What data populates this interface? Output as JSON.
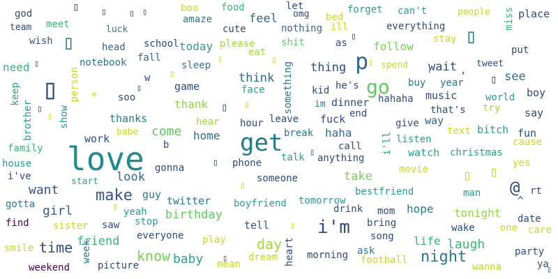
{
  "palette": {
    "dark_purple": "#440154",
    "indigo": "#31688e",
    "navy": "#2f4a7f",
    "teal": "#1f8c8c",
    "green": "#35b779",
    "lime": "#8fd744",
    "yellow": "#c9d91f"
  },
  "words": [
    {
      "text": "love",
      "color": "#1f8c8c"
    },
    {
      "text": "get",
      "color": "#1f7a8c"
    },
    {
      "text": "i'm",
      "color": "#2f4a7f"
    },
    {
      "text": "go",
      "color": "#5ec962"
    },
    {
      "text": "p",
      "color": "#31688e"
    },
    {
      "text": "night",
      "color": "#2a788e"
    },
    {
      "text": "make",
      "color": "#3b528b"
    },
    {
      "text": "know",
      "color": "#7ad151"
    },
    {
      "text": "day",
      "color": "#a0da39"
    },
    {
      "text": "laugh",
      "color": "#35b779"
    },
    {
      "text": "time",
      "color": "#2f4a7f"
    },
    {
      "text": "baby",
      "color": "#2a9d8f"
    },
    {
      "text": "thing",
      "color": "#2f4a7f"
    },
    {
      "text": "come",
      "color": "#5ec962"
    },
    {
      "text": "want",
      "color": "#3b528b"
    },
    {
      "text": "girl",
      "color": "#35608d"
    },
    {
      "text": "friend",
      "color": "#35b779"
    },
    {
      "text": "birthday",
      "color": "#5ec962"
    },
    {
      "text": "take",
      "color": "#7ad151"
    },
    {
      "text": "look",
      "color": "#31688e"
    },
    {
      "text": "feel",
      "color": "#31688e"
    },
    {
      "text": "think",
      "color": "#31688e"
    },
    {
      "text": "wait",
      "color": "#2f4a7f"
    },
    {
      "text": "see",
      "color": "#31688e"
    },
    {
      "text": "follow",
      "color": "#7ad151"
    },
    {
      "text": "today",
      "color": "#2a9d8f"
    },
    {
      "text": "need",
      "color": "#35b779"
    },
    {
      "text": "thank",
      "color": "#8fd744"
    },
    {
      "text": "thanks",
      "color": "#2a788e"
    },
    {
      "text": "work",
      "color": "#2f4a7f"
    },
    {
      "text": "home",
      "color": "#31688e"
    },
    {
      "text": "haha",
      "color": "#31688e"
    },
    {
      "text": "hope",
      "color": "#2a788e"
    },
    {
      "text": "tonight",
      "color": "#8fd744"
    },
    {
      "text": "life",
      "color": "#35b779"
    },
    {
      "text": "tell",
      "color": "#3b528b"
    },
    {
      "text": "watch",
      "color": "#2a9d8f"
    },
    {
      "text": "game",
      "color": "#2f4a7f"
    },
    {
      "text": "say",
      "color": "#2f4a7f"
    },
    {
      "text": "place",
      "color": "#2f4a7f"
    },
    {
      "text": "fun",
      "color": "#2f4a7f"
    },
    {
      "text": "music",
      "color": "#2f4a7f"
    },
    {
      "text": "way",
      "color": "#35608d"
    },
    {
      "text": "christmas",
      "color": "#2a9d8f"
    },
    {
      "text": "forget",
      "color": "#2a9d8f"
    },
    {
      "text": "can't",
      "color": "#2a9d8f"
    },
    {
      "text": "everything",
      "color": "#2f4a7f"
    },
    {
      "text": "nothing",
      "color": "#31688e"
    },
    {
      "text": "people",
      "color": "#c9d91f"
    },
    {
      "text": "food",
      "color": "#35b779"
    },
    {
      "text": "boo",
      "color": "#c9d91f"
    },
    {
      "text": "god",
      "color": "#2f4a7f"
    },
    {
      "text": "team",
      "color": "#2f4a7f"
    },
    {
      "text": "meet",
      "color": "#35b779"
    },
    {
      "text": "wish",
      "color": "#3b528b"
    },
    {
      "text": "luck",
      "color": "#2a788e"
    },
    {
      "text": "school",
      "color": "#2f4a7f"
    },
    {
      "text": "head",
      "color": "#31688e"
    },
    {
      "text": "fall",
      "color": "#31688e"
    },
    {
      "text": "amaze",
      "color": "#2a788e"
    },
    {
      "text": "cute",
      "color": "#2f4a7f"
    },
    {
      "text": "let",
      "color": "#2f4a7f"
    },
    {
      "text": "omg",
      "color": "#2f4a7f"
    },
    {
      "text": "bed",
      "color": "#c9d91f"
    },
    {
      "text": "ill",
      "color": "#c9d91f"
    },
    {
      "text": "as",
      "color": "#2f4a7f"
    },
    {
      "text": "please",
      "color": "#a0da39"
    },
    {
      "text": "eat",
      "color": "#a0da39"
    },
    {
      "text": "shit",
      "color": "#5ec962"
    },
    {
      "text": "stay",
      "color": "#c9d91f"
    },
    {
      "text": "spend",
      "color": "#c9d91f"
    },
    {
      "text": "put",
      "color": "#2f4a7f"
    },
    {
      "text": "tweet",
      "color": "#2f4a7f"
    },
    {
      "text": "notebook",
      "color": "#2a788e"
    },
    {
      "text": "sleep",
      "color": "#2a788e"
    },
    {
      "text": "w",
      "color": "#2f4a7f"
    },
    {
      "text": "soo",
      "color": "#2f4a7f"
    },
    {
      "text": "face",
      "color": "#2a9d8f"
    },
    {
      "text": "kid",
      "color": "#2f4a7f"
    },
    {
      "text": "he's",
      "color": "#2f4a7f"
    },
    {
      "text": "hahaha",
      "color": "#2f4a7f"
    },
    {
      "text": "buy",
      "color": "#2a788e"
    },
    {
      "text": "year",
      "color": "#2a788e"
    },
    {
      "text": "boy",
      "color": "#2f4a7f"
    },
    {
      "text": "world",
      "color": "#2a9d8f"
    },
    {
      "text": "try",
      "color": "#a0da39"
    },
    {
      "text": "that's",
      "color": "#2f4a7f"
    },
    {
      "text": "im",
      "color": "#2a788e"
    },
    {
      "text": "dinner",
      "color": "#2f4a7f"
    },
    {
      "text": "end",
      "color": "#2f4a7f"
    },
    {
      "text": "fuck",
      "color": "#2f4a7f"
    },
    {
      "text": "hour",
      "color": "#2f4a7f"
    },
    {
      "text": "leave",
      "color": "#2f4a7f"
    },
    {
      "text": "hear",
      "color": "#a0da39"
    },
    {
      "text": "give",
      "color": "#2f4a7f"
    },
    {
      "text": "text",
      "color": "#c9d91f"
    },
    {
      "text": "bitch",
      "color": "#2a9d8f"
    },
    {
      "text": "cause",
      "color": "#c9d91f"
    },
    {
      "text": "break",
      "color": "#2a788e"
    },
    {
      "text": "listen",
      "color": "#2a9d8f"
    },
    {
      "text": "call",
      "color": "#2f4a7f"
    },
    {
      "text": "anything",
      "color": "#2f4a7f"
    },
    {
      "text": "talk",
      "color": "#2a9d8f"
    },
    {
      "text": "phone",
      "color": "#2f4a7f"
    },
    {
      "text": "babe",
      "color": "#c9d91f"
    },
    {
      "text": "b",
      "color": "#2f4a7f"
    },
    {
      "text": "gonna",
      "color": "#2f4a7f"
    },
    {
      "text": "movie",
      "color": "#c9d91f"
    },
    {
      "text": "yes",
      "color": "#c9d91f"
    },
    {
      "text": "family",
      "color": "#35b779"
    },
    {
      "text": "house",
      "color": "#2a9d8f"
    },
    {
      "text": "i've",
      "color": "#2f4a7f"
    },
    {
      "text": "start",
      "color": "#2a9d8f"
    },
    {
      "text": "gotta",
      "color": "#2a788e"
    },
    {
      "text": "find",
      "color": "#440154"
    },
    {
      "text": "sister",
      "color": "#c9d91f"
    },
    {
      "text": "twitter",
      "color": "#2a788e"
    },
    {
      "text": "yeah",
      "color": "#2a9d8f"
    },
    {
      "text": "stop",
      "color": "#2a9d8f"
    },
    {
      "text": "saw",
      "color": "#2f4a7f"
    },
    {
      "text": "everyone",
      "color": "#2f4a7f"
    },
    {
      "text": "someone",
      "color": "#2f4a7f"
    },
    {
      "text": "tomorrow",
      "color": "#2a9d8f"
    },
    {
      "text": "bestfriend",
      "color": "#2a9d8f"
    },
    {
      "text": "boyfriend",
      "color": "#2a9d8f"
    },
    {
      "text": "drink",
      "color": "#2f4a7f"
    },
    {
      "text": "mom",
      "color": "#2f4a7f"
    },
    {
      "text": "bring",
      "color": "#2f4a7f"
    },
    {
      "text": "man",
      "color": "#2a9d8f"
    },
    {
      "text": "rt",
      "color": "#2f4a7f"
    },
    {
      "text": "date",
      "color": "#2f4a7f"
    },
    {
      "text": "one",
      "color": "#c9d91f"
    },
    {
      "text": "care",
      "color": "#c9d91f"
    },
    {
      "text": "wake",
      "color": "#2f4a7f"
    },
    {
      "text": "song",
      "color": "#2f4a7f"
    },
    {
      "text": "play",
      "color": "#c9d91f"
    },
    {
      "text": "smile",
      "color": "#c9d91f"
    },
    {
      "text": "weekend",
      "color": "#440154"
    },
    {
      "text": "picture",
      "color": "#2f4a7f"
    },
    {
      "text": "mean",
      "color": "#c9d91f"
    },
    {
      "text": "dream",
      "color": "#c9d91f"
    },
    {
      "text": "morning",
      "color": "#2f4a7f"
    },
    {
      "text": "ask",
      "color": "#2a788e"
    },
    {
      "text": "football",
      "color": "#c9d91f"
    },
    {
      "text": "party",
      "color": "#2f4a7f"
    },
    {
      "text": "ya",
      "color": "#2f4a7f"
    },
    {
      "text": "wanna",
      "color": "#c9d91f"
    },
    {
      "text": "miss",
      "color": "#35b779"
    },
    {
      "text": "something",
      "color": "#2a788e"
    },
    {
      "text": "i'll",
      "color": "#2a9d8f"
    },
    {
      "text": "heart",
      "color": "#2f4a7f"
    },
    {
      "text": "week",
      "color": "#2a788e"
    },
    {
      "text": "keep",
      "color": "#2a9d8f"
    },
    {
      "text": "brother",
      "color": "#2a9d8f"
    },
    {
      "text": "show",
      "color": "#2a9d8f"
    },
    {
      "text": "person",
      "color": "#c9d91f"
    },
    {
      "text": "guy",
      "color": "#2a788e"
    },
    {
      "text": "@",
      "color": "#2f4a7f"
    },
    {
      "text": "^",
      "color": "#2f4a7f"
    },
    {
      "text": "*",
      "color": "#c9d91f"
    },
    {
      "text": ",",
      "color": "#2f4a7f"
    },
    {
      "text": "'",
      "color": "#2f4a7f"
    }
  ]
}
